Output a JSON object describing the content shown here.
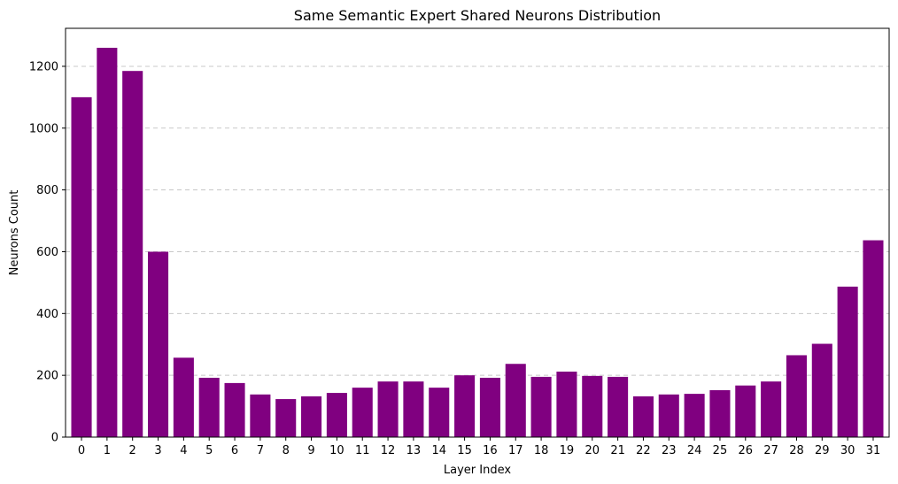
{
  "chart_data": {
    "type": "bar",
    "title": "Same Semantic Expert Shared Neurons Distribution",
    "xlabel": "Layer Index",
    "ylabel": "Neurons Count",
    "categories": [
      "0",
      "1",
      "2",
      "3",
      "4",
      "5",
      "6",
      "7",
      "8",
      "9",
      "10",
      "11",
      "12",
      "13",
      "14",
      "15",
      "16",
      "17",
      "18",
      "19",
      "20",
      "21",
      "22",
      "23",
      "24",
      "25",
      "26",
      "27",
      "28",
      "29",
      "30",
      "31"
    ],
    "values": [
      1100,
      1260,
      1185,
      600,
      257,
      192,
      175,
      138,
      123,
      132,
      143,
      160,
      180,
      180,
      160,
      200,
      192,
      237,
      195,
      212,
      198,
      195,
      132,
      138,
      140,
      152,
      167,
      180,
      265,
      302,
      487,
      637
    ],
    "ylim": [
      0,
      1323
    ],
    "yticks": [
      0,
      200,
      400,
      600,
      800,
      1000,
      1200
    ],
    "bar_color": "#800080",
    "grid": "y-dashed"
  }
}
